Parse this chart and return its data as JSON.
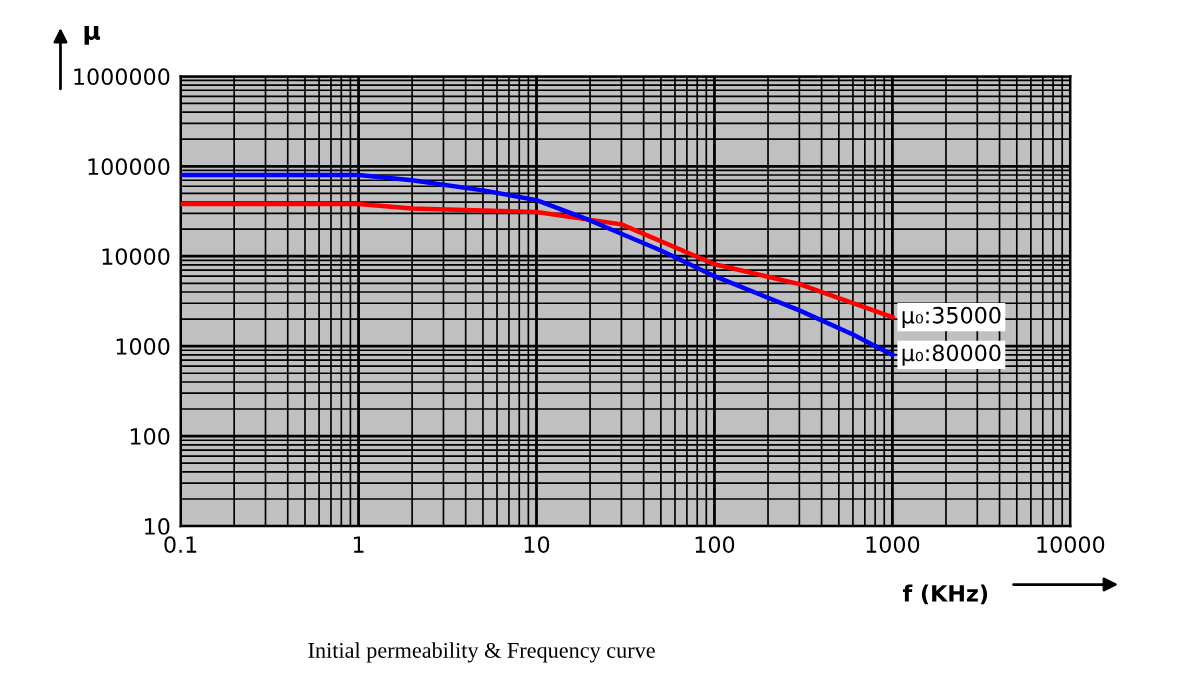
{
  "chart_data": {
    "type": "line",
    "xlabel": "f (KHz)",
    "ylabel": "μ",
    "log": "xy",
    "grid": true,
    "xlim": [
      0.1,
      10000
    ],
    "ylim": [
      10,
      1000000
    ],
    "xticks": [
      0.1,
      1,
      10,
      100,
      1000,
      10000
    ],
    "yticks": [
      10,
      100,
      1000,
      10000,
      100000,
      1000000
    ],
    "series": [
      {
        "color": "#ff0000",
        "x": [
          0.1,
          1,
          2,
          10,
          30,
          100,
          300,
          1000
        ],
        "values": [
          38000,
          38000,
          34000,
          31000,
          22600,
          8150,
          4900,
          2100
        ]
      },
      {
        "color": "#0000ff",
        "x": [
          0.1,
          1,
          2,
          5,
          10,
          20,
          50,
          100,
          300,
          600,
          1000
        ],
        "values": [
          80000,
          80000,
          70000,
          54000,
          42000,
          25000,
          11600,
          6000,
          2500,
          1350,
          800
        ]
      }
    ],
    "annotations": [
      {
        "text": "μ₀:35000",
        "x": 1000,
        "y": 2100
      },
      {
        "text": "μ₀:80000",
        "x": 1000,
        "y": 800
      },
      "Initial permeability & Frequency curve"
    ]
  }
}
